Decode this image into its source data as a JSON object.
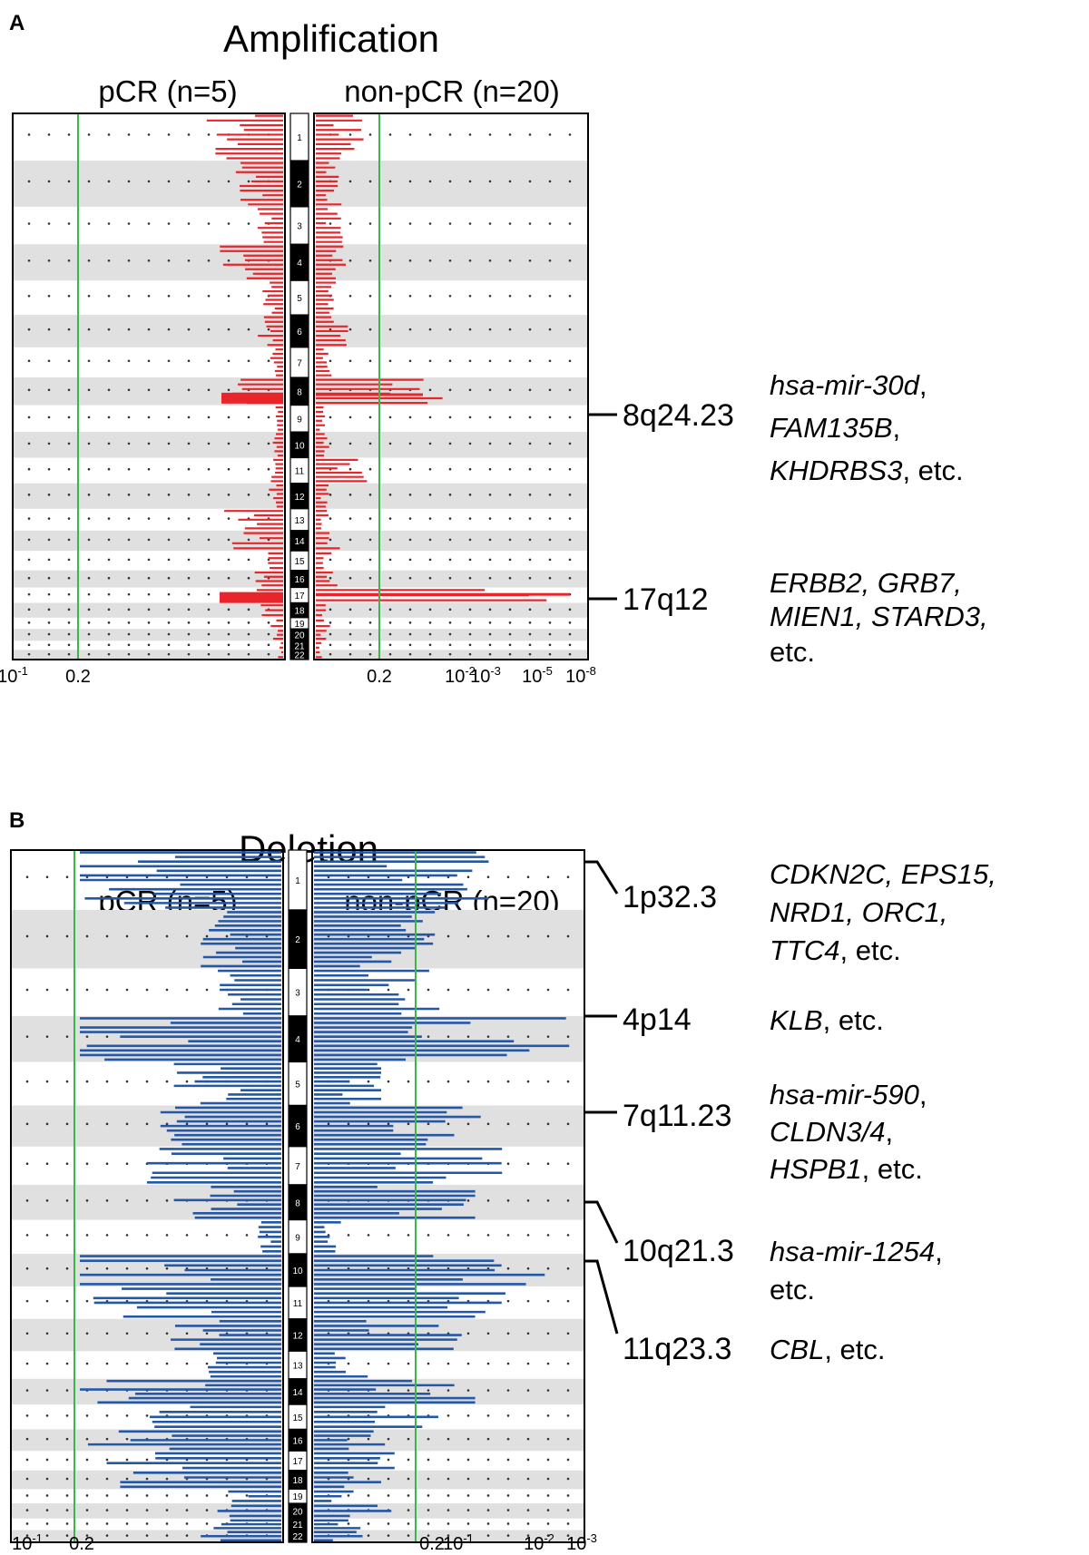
{
  "figure": "GISTIC chromosome plots of copy number amplification and deletion in pCR vs non-pCR groups",
  "colors": {
    "amplification": "#e8252b",
    "deletion": "#2557a7",
    "threshold": "#3cb54a",
    "band": "#e0e0e0",
    "frame": "#000000"
  },
  "chart_data": [
    {
      "type": "bar",
      "panel_letter": "A",
      "title": "Amplification",
      "left_label": "pCR (n=5)",
      "right_label": "non-pCR (n=20)",
      "left_ticks": [
        "10-1",
        "0.2"
      ],
      "right_ticks": [
        "0.2",
        "10-2",
        "10-3",
        "10-5",
        "10-8"
      ],
      "chromosomes": [
        "1",
        "2",
        "3",
        "4",
        "5",
        "6",
        "7",
        "8",
        "9",
        "10",
        "11",
        "12",
        "13",
        "14",
        "15",
        "16",
        "17",
        "18",
        "19",
        "20",
        "21",
        "22"
      ],
      "series": [
        {
          "name": "pCR (n=5)",
          "unit": "-log10 q-value (relative)",
          "values": [
            0.3,
            0.2,
            0.1,
            0.25,
            0.08,
            0.1,
            0.05,
            0.27,
            0.03,
            0.04,
            0.05,
            0.06,
            0.22,
            0.2,
            0.06,
            0.2,
            0.28,
            0.1,
            0.05,
            0.04,
            0.02,
            0.02
          ]
        },
        {
          "name": "non-pCR (n=20)",
          "unit": "-log10 q-value (relative)",
          "values": [
            0.18,
            0.1,
            0.1,
            0.12,
            0.08,
            0.12,
            0.06,
            0.6,
            0.04,
            0.06,
            0.2,
            0.05,
            0.05,
            0.12,
            0.06,
            0.08,
            1.0,
            0.06,
            0.06,
            0.04,
            0.03,
            0.03
          ]
        }
      ],
      "annotations": [
        {
          "region": "8q24.23",
          "genes": [
            {
              "text": "hsa-mir-30d",
              "italic": true,
              "suffix": ","
            },
            {
              "text": "FAM135B",
              "italic": true,
              "suffix": ","
            },
            {
              "text": "KHDRBS3",
              "italic": true,
              "suffix": ", etc."
            }
          ]
        },
        {
          "region": "17q12",
          "genes": [
            {
              "text": "ERBB2, GRB7,",
              "italic": true,
              "suffix": ""
            },
            {
              "text": "MIEN1, STARD3,",
              "italic": true,
              "suffix": ""
            },
            {
              "text": "",
              "italic": false,
              "suffix": "etc."
            }
          ]
        }
      ]
    },
    {
      "type": "bar",
      "panel_letter": "B",
      "title": "Deletion",
      "left_label": "pCR (n=5)",
      "right_label": "non-pCR (n=20)",
      "left_ticks": [
        "10-1",
        "0.2"
      ],
      "right_ticks": [
        "0.2",
        "10-1",
        "10-2",
        "10-3"
      ],
      "chromosomes": [
        "1",
        "2",
        "3",
        "4",
        "5",
        "6",
        "7",
        "8",
        "9",
        "10",
        "11",
        "12",
        "13",
        "14",
        "15",
        "16",
        "17",
        "18",
        "19",
        "20",
        "21",
        "22"
      ],
      "series": [
        {
          "name": "pCR (n=5)",
          "unit": "-log10 q-value (relative)",
          "values": [
            0.75,
            0.3,
            0.25,
            0.75,
            0.4,
            0.45,
            0.5,
            0.4,
            0.1,
            0.75,
            0.7,
            0.45,
            0.3,
            0.75,
            0.7,
            0.75,
            0.65,
            0.6,
            0.3,
            0.45,
            0.3,
            0.3
          ]
        },
        {
          "name": "non-pCR (n=20)",
          "unit": "-log10 q-value (relative)",
          "values": [
            0.65,
            0.45,
            0.5,
            0.95,
            0.25,
            0.65,
            0.7,
            0.6,
            0.1,
            0.95,
            0.75,
            0.55,
            0.2,
            0.6,
            0.5,
            0.35,
            0.3,
            0.25,
            0.15,
            0.3,
            0.2,
            0.2
          ]
        }
      ],
      "annotations": [
        {
          "region": "1p32.3",
          "genes": [
            {
              "text": "CDKN2C, EPS15,",
              "italic": true,
              "suffix": ""
            },
            {
              "text": "NRD1, ORC1,",
              "italic": true,
              "suffix": ""
            },
            {
              "text": "TTC4",
              "italic": true,
              "suffix": ", etc."
            }
          ]
        },
        {
          "region": "4p14",
          "genes": [
            {
              "text": "KLB",
              "italic": true,
              "suffix": ", etc."
            }
          ]
        },
        {
          "region": "7q11.23",
          "genes": [
            {
              "text": "hsa-mir-590",
              "italic": true,
              "suffix": ","
            },
            {
              "text": "CLDN3/4",
              "italic": true,
              "suffix": ","
            },
            {
              "text": "HSPB1",
              "italic": true,
              "suffix": ", etc."
            }
          ]
        },
        {
          "region": "10q21.3",
          "genes": [
            {
              "text": "hsa-mir-1254",
              "italic": true,
              "suffix": ","
            },
            {
              "text": "",
              "italic": false,
              "suffix": "etc."
            }
          ]
        },
        {
          "region": "11q23.3",
          "genes": [
            {
              "text": "CBL",
              "italic": true,
              "suffix": ", etc."
            }
          ]
        }
      ]
    }
  ]
}
